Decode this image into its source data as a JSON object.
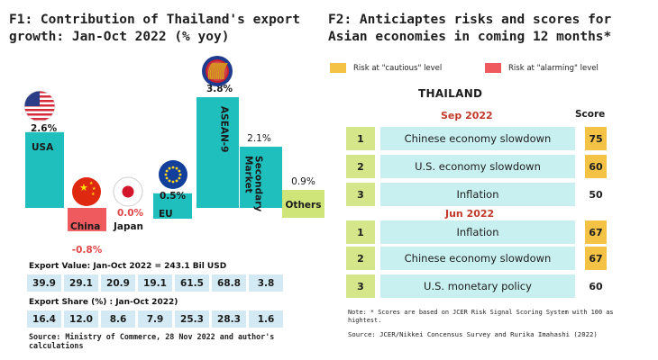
{
  "f1": {
    "title": "F1: Contribution of Thailand's export growth: Jan-Oct 2022 (% yoy)",
    "value_label": "Export Value: Jan-Oct 2022 = 243.1 Bil USD",
    "values": [
      "39.9",
      "29.1",
      "20.9",
      "19.1",
      "61.5",
      "68.8",
      "3.8"
    ],
    "share_label": "Export Share (%) : Jan-Oct 2022)",
    "shares": [
      "16.4",
      "12.0",
      "8.6",
      "7.9",
      "25.3",
      "28.3",
      "1.6"
    ],
    "source": "Source: Ministry of Commerce, 28 Nov 2022 and author's calculations"
  },
  "chart_data": {
    "type": "bar",
    "title": "F1: Contribution of Thailand's export growth: Jan-Oct 2022 (% yoy)",
    "categories": [
      "USA",
      "China",
      "Japan",
      "EU",
      "ASEAN-9",
      "Secondary Market",
      "Others"
    ],
    "values": [
      2.6,
      -0.8,
      0.0,
      0.5,
      3.8,
      2.1,
      0.9
    ],
    "value_labels": [
      "2.6%",
      "-0.8%",
      "0.0%",
      "0.5%",
      "3.8%",
      "2.1%",
      "0.9%"
    ],
    "colors": [
      "#1fbfbe",
      "#ee5a5e",
      "#1fbfbe",
      "#1fbfbe",
      "#1fbfbe",
      "#1fbfbe",
      "#cfe57a"
    ],
    "icons": [
      "us-flag-icon",
      "china-flag-icon",
      "japan-flag-icon",
      "eu-flag-icon",
      "asean-logo-icon",
      "",
      ""
    ],
    "ylim": [
      -0.8,
      3.8
    ]
  },
  "f2": {
    "title": "F2: Anticiaptes risks and scores for Asian economies in coming 12 months*",
    "legend": [
      {
        "label": "Risk at \"cautious\" level",
        "color": "#f4c245"
      },
      {
        "label": "Risk at \"alarming\" level",
        "color": "#ee5a5e"
      }
    ],
    "country": "THAILAND",
    "score_header": "Score",
    "groups": [
      {
        "period": "Sep 2022",
        "rows": [
          {
            "rank": "1",
            "risk": "Chinese economy slowdown",
            "score": "75",
            "color": "#f4c245"
          },
          {
            "rank": "2",
            "risk": "U.S. economy slowdown",
            "score": "60",
            "color": "#f4c245"
          },
          {
            "rank": "3",
            "risk": "Inflation",
            "score": "50",
            "color": ""
          }
        ]
      },
      {
        "period": "Jun 2022",
        "rows": [
          {
            "rank": "1",
            "risk": "Inflation",
            "score": "67",
            "color": "#f4c245"
          },
          {
            "rank": "2",
            "risk": "Chinese economy slowdown",
            "score": "67",
            "color": "#f4c245"
          },
          {
            "rank": "3",
            "risk": "U.S. monetary policy",
            "score": "60",
            "color": ""
          }
        ]
      }
    ],
    "note": "Note: * Scores are based on JCER Risk Signal Scoring System with 100 as hightest.",
    "source": "Source: JCER/Nikkei Concensus Survey and Rurika Imahashi (2022)"
  }
}
